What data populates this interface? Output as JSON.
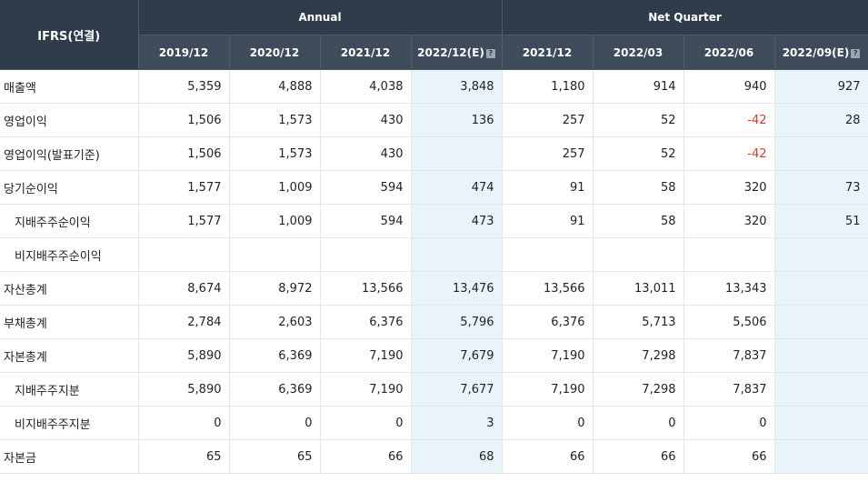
{
  "header": {
    "corner": "IFRS(연결)",
    "group_annual": "Annual",
    "group_quarter": "Net Quarter",
    "periods": [
      "2019/12",
      "2020/12",
      "2021/12",
      "2022/12(E)",
      "2021/12",
      "2022/03",
      "2022/06",
      "2022/09(E)"
    ],
    "estimate_flags": [
      false,
      false,
      false,
      true,
      false,
      false,
      false,
      true
    ],
    "estimate_icon": "?"
  },
  "rows": [
    {
      "label": "매출액",
      "indent": false,
      "values": [
        "5,359",
        "4,888",
        "4,038",
        "3,848",
        "1,180",
        "914",
        "940",
        "927"
      ]
    },
    {
      "label": "영업이익",
      "indent": false,
      "values": [
        "1,506",
        "1,573",
        "430",
        "136",
        "257",
        "52",
        "-42",
        "28"
      ]
    },
    {
      "label": "영업이익(발표기준)",
      "indent": false,
      "values": [
        "1,506",
        "1,573",
        "430",
        "",
        "257",
        "52",
        "-42",
        ""
      ]
    },
    {
      "label": "당기순이익",
      "indent": false,
      "values": [
        "1,577",
        "1,009",
        "594",
        "474",
        "91",
        "58",
        "320",
        "73"
      ]
    },
    {
      "label": "지배주주순이익",
      "indent": true,
      "values": [
        "1,577",
        "1,009",
        "594",
        "473",
        "91",
        "58",
        "320",
        "51"
      ]
    },
    {
      "label": "비지배주주순이익",
      "indent": true,
      "values": [
        "",
        "",
        "",
        "",
        "",
        "",
        "",
        ""
      ]
    },
    {
      "label": "자산총계",
      "indent": false,
      "values": [
        "8,674",
        "8,972",
        "13,566",
        "13,476",
        "13,566",
        "13,011",
        "13,343",
        ""
      ]
    },
    {
      "label": "부채총계",
      "indent": false,
      "values": [
        "2,784",
        "2,603",
        "6,376",
        "5,796",
        "6,376",
        "5,713",
        "5,506",
        ""
      ]
    },
    {
      "label": "자본총계",
      "indent": false,
      "values": [
        "5,890",
        "6,369",
        "7,190",
        "7,679",
        "7,190",
        "7,298",
        "7,837",
        ""
      ]
    },
    {
      "label": "지배주주지분",
      "indent": true,
      "values": [
        "5,890",
        "6,369",
        "7,190",
        "7,677",
        "7,190",
        "7,298",
        "7,837",
        ""
      ]
    },
    {
      "label": "비지배주주지분",
      "indent": true,
      "values": [
        "0",
        "0",
        "0",
        "3",
        "0",
        "0",
        "0",
        ""
      ]
    },
    {
      "label": "자본금",
      "indent": false,
      "values": [
        "65",
        "65",
        "66",
        "68",
        "66",
        "66",
        "66",
        ""
      ]
    }
  ],
  "colors": {
    "header_bg": "#2e3c4b",
    "estimate_bg": "#e8f4fa",
    "negative": "#e0382e"
  }
}
